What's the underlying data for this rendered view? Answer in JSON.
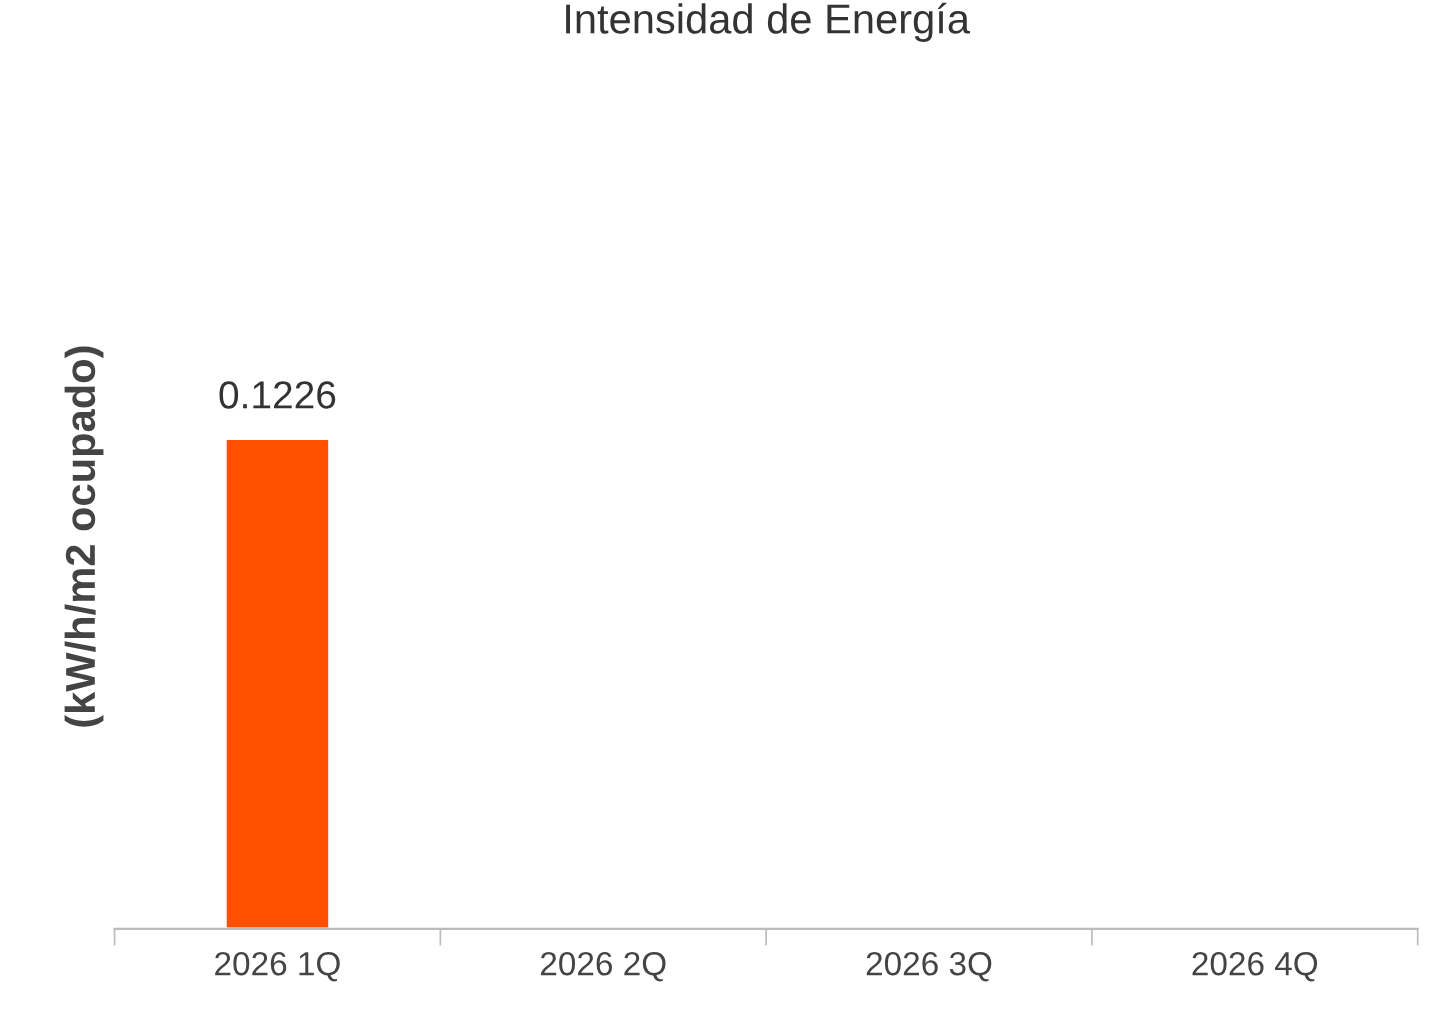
{
  "chart_data": {
    "type": "bar",
    "title": "Intensidad de Energía",
    "ylabel": "(kW/h/m2 ocupado)",
    "categories": [
      "2026 1Q",
      "2026 2Q",
      "2026 3Q",
      "2026 4Q"
    ],
    "values": [
      0.1226,
      null,
      null,
      null
    ],
    "color": "#ff5000",
    "data_labels": true,
    "grid": false,
    "legend": false
  }
}
